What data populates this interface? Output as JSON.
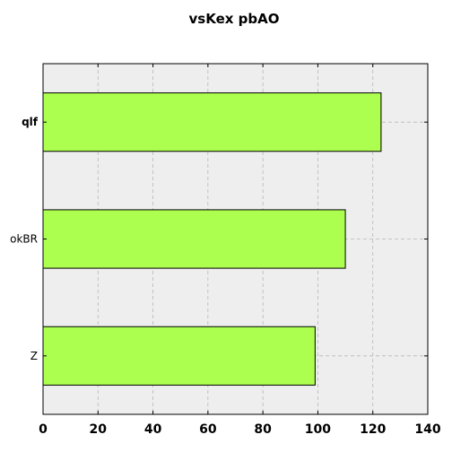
{
  "chart_data": {
    "type": "bar",
    "orientation": "horizontal",
    "title": "vsKex pbAO",
    "xlabel": "",
    "ylabel": "",
    "categories": [
      "qlf",
      "okBR",
      "Z"
    ],
    "bold_categories": [
      "qlf"
    ],
    "values": [
      123,
      110,
      99
    ],
    "xlim": [
      0,
      140
    ],
    "xticks": [
      0,
      20,
      40,
      60,
      80,
      100,
      120,
      140
    ],
    "grid": true,
    "bar_color": "#adff4f",
    "plot_background": "#eeeeee"
  }
}
